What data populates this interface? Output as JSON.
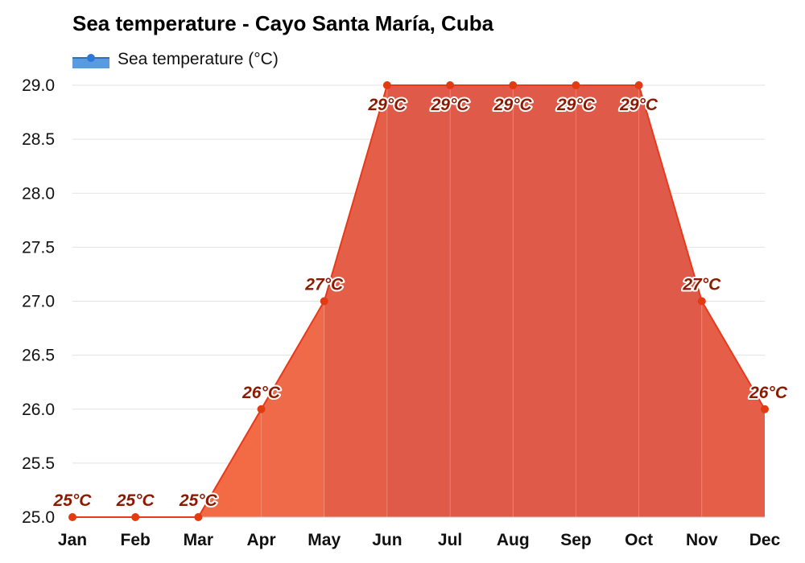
{
  "chart_data": {
    "type": "area",
    "title": "Sea temperature - Cayo Santa María, Cuba",
    "categories": [
      "Jan",
      "Feb",
      "Mar",
      "Apr",
      "May",
      "Jun",
      "Jul",
      "Aug",
      "Sep",
      "Oct",
      "Nov",
      "Dec"
    ],
    "series": [
      {
        "name": "Sea temperature (°C)",
        "values": [
          25,
          25,
          25,
          26,
          27,
          29,
          29,
          29,
          29,
          29,
          27,
          26
        ],
        "labels": [
          "25°C",
          "25°C",
          "25°C",
          "26°C",
          "27°C",
          "29°C",
          "29°C",
          "29°C",
          "29°C",
          "29°C",
          "27°C",
          "26°C"
        ]
      }
    ],
    "ylim": [
      25.0,
      29.0
    ],
    "yticks": [
      "25.0",
      "25.5",
      "26.0",
      "26.5",
      "27.0",
      "27.5",
      "28.0",
      "28.5",
      "29.0"
    ],
    "grid": true,
    "legend_position": "top-left",
    "colors": {
      "line": "#e8391c",
      "marker": "#e23b12",
      "label": "#8b1a00",
      "legend": "#3f87d6",
      "fill_by_month": [
        "#f26b45",
        "#f26b45",
        "#f26b45",
        "#ef6a48",
        "#e55e47",
        "#e05a4a",
        "#e05a4a",
        "#e05a4a",
        "#e05a4a",
        "#e05a4a",
        "#e55e47",
        "#ef6a48"
      ]
    }
  }
}
